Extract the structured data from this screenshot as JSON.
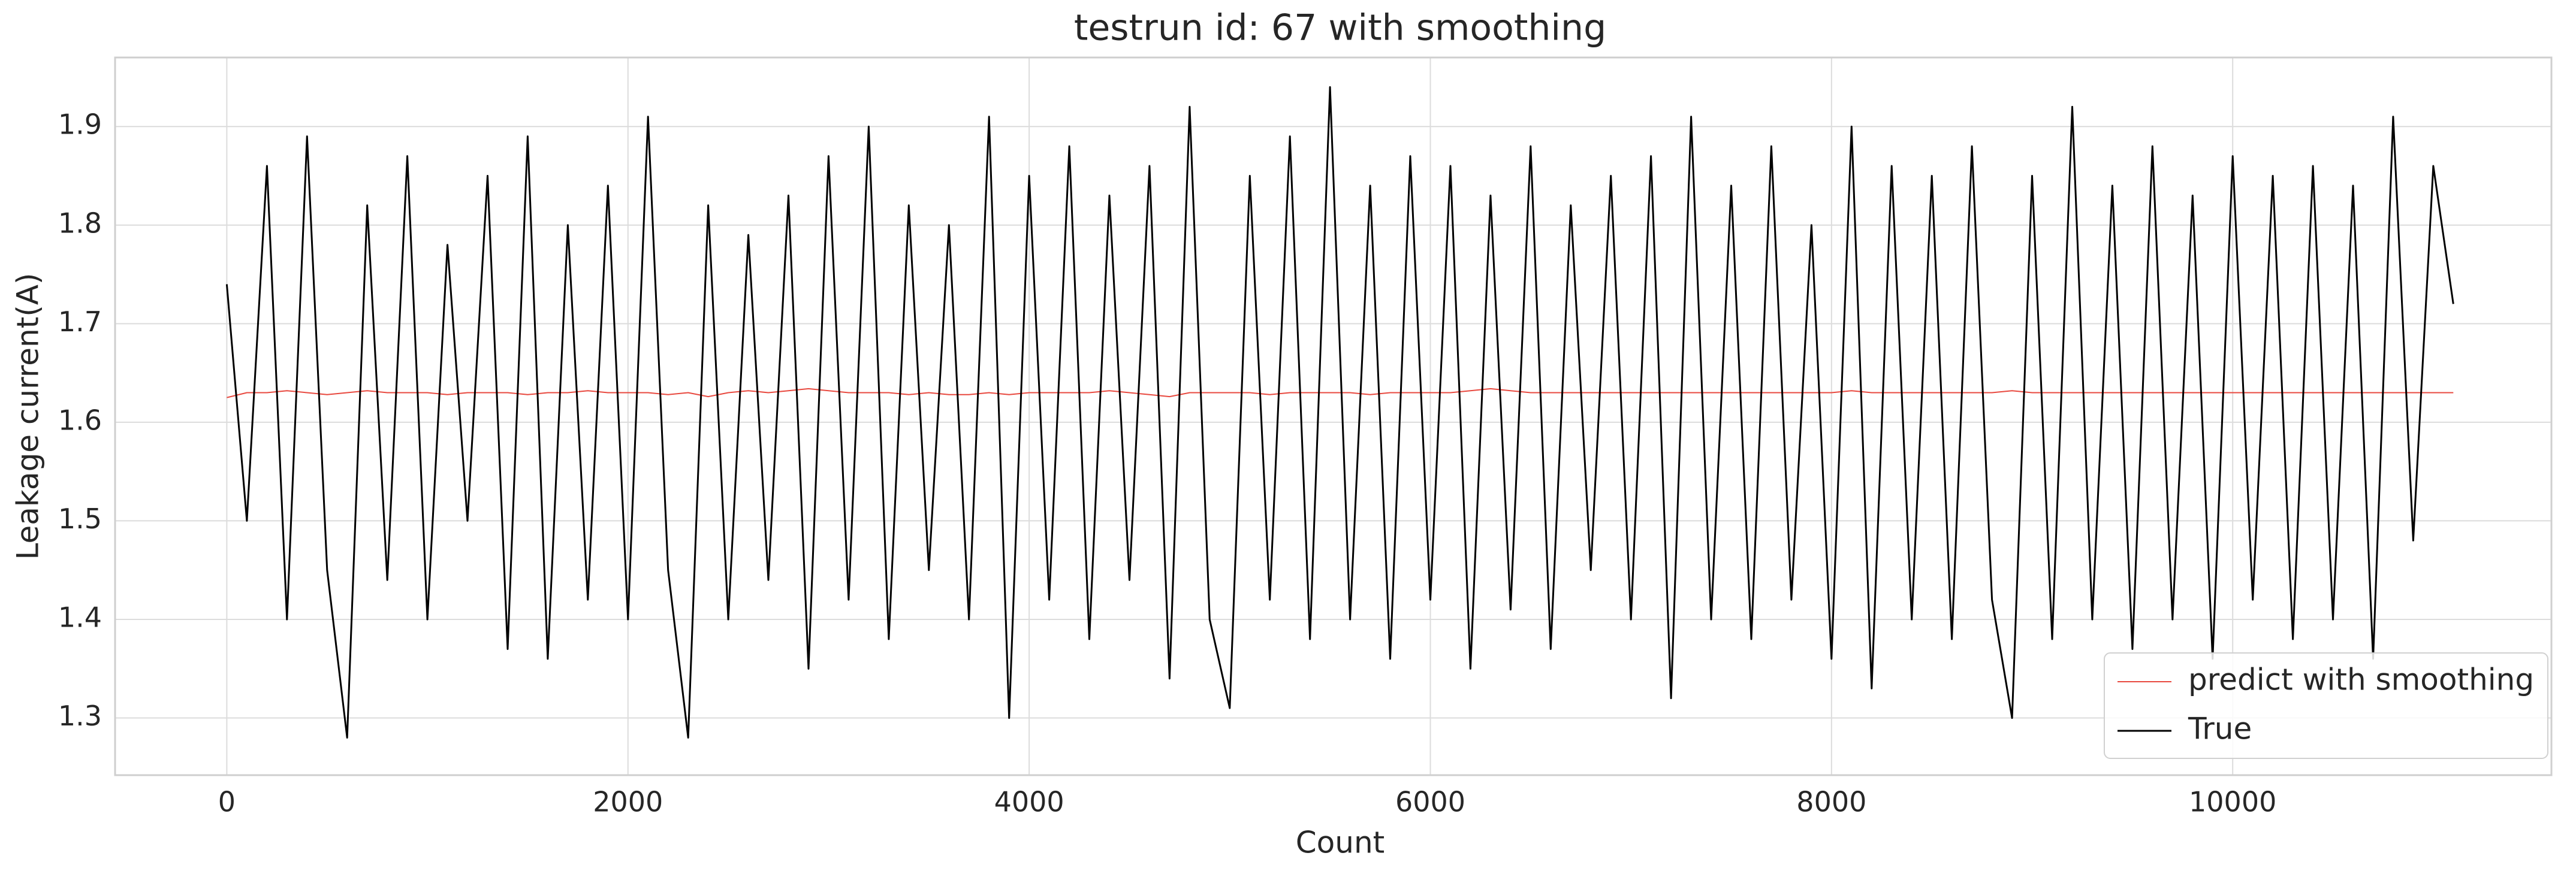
{
  "chart_data": {
    "type": "line",
    "title": "testrun id: 67 with smoothing",
    "x_label": "Count",
    "y_label": "Leakage current(A)",
    "x": [
      0,
      100,
      200,
      300,
      400,
      500,
      600,
      700,
      800,
      900,
      1000,
      1100,
      1200,
      1300,
      1400,
      1500,
      1600,
      1700,
      1800,
      1900,
      2000,
      2100,
      2200,
      2300,
      2400,
      2500,
      2600,
      2700,
      2800,
      2900,
      3000,
      3100,
      3200,
      3300,
      3400,
      3500,
      3600,
      3700,
      3800,
      3900,
      4000,
      4100,
      4200,
      4300,
      4400,
      4500,
      4600,
      4700,
      4800,
      4900,
      5000,
      5100,
      5200,
      5300,
      5400,
      5500,
      5600,
      5700,
      5800,
      5900,
      6000,
      6100,
      6200,
      6300,
      6400,
      6500,
      6600,
      6700,
      6800,
      6900,
      7000,
      7100,
      7200,
      7300,
      7400,
      7500,
      7600,
      7700,
      7800,
      7900,
      8000,
      8100,
      8200,
      8300,
      8400,
      8500,
      8600,
      8700,
      8800,
      8900,
      9000,
      9100,
      9200,
      9300,
      9400,
      9500,
      9600,
      9700,
      9800,
      9900,
      10000,
      10100,
      10200,
      10300,
      10400,
      10500,
      10600,
      10700,
      10800,
      10900,
      11000,
      11100
    ],
    "series": [
      {
        "name": "predict with smoothing",
        "color": "#e8493f",
        "width": 2,
        "values": [
          1.625,
          1.63,
          1.63,
          1.632,
          1.63,
          1.628,
          1.63,
          1.632,
          1.63,
          1.63,
          1.63,
          1.628,
          1.63,
          1.63,
          1.63,
          1.628,
          1.63,
          1.63,
          1.632,
          1.63,
          1.63,
          1.63,
          1.628,
          1.63,
          1.626,
          1.63,
          1.632,
          1.63,
          1.632,
          1.634,
          1.632,
          1.63,
          1.63,
          1.63,
          1.628,
          1.63,
          1.628,
          1.628,
          1.63,
          1.628,
          1.63,
          1.63,
          1.63,
          1.63,
          1.632,
          1.63,
          1.628,
          1.626,
          1.63,
          1.63,
          1.63,
          1.63,
          1.628,
          1.63,
          1.63,
          1.63,
          1.63,
          1.628,
          1.63,
          1.63,
          1.63,
          1.63,
          1.632,
          1.634,
          1.632,
          1.63,
          1.63,
          1.63,
          1.63,
          1.63,
          1.63,
          1.63,
          1.63,
          1.63,
          1.63,
          1.63,
          1.63,
          1.63,
          1.63,
          1.63,
          1.63,
          1.632,
          1.63,
          1.63,
          1.63,
          1.63,
          1.63,
          1.63,
          1.63,
          1.632,
          1.63,
          1.63,
          1.63,
          1.63,
          1.63,
          1.63,
          1.63,
          1.63,
          1.63,
          1.63,
          1.63,
          1.63,
          1.63,
          1.63,
          1.63,
          1.63,
          1.63,
          1.63,
          1.63,
          1.63,
          1.63,
          1.63
        ]
      },
      {
        "name": "True",
        "color": "#000000",
        "width": 3,
        "values": [
          1.74,
          1.5,
          1.86,
          1.4,
          1.89,
          1.45,
          1.28,
          1.82,
          1.44,
          1.87,
          1.4,
          1.78,
          1.5,
          1.85,
          1.37,
          1.89,
          1.36,
          1.8,
          1.42,
          1.84,
          1.4,
          1.91,
          1.45,
          1.28,
          1.82,
          1.4,
          1.79,
          1.44,
          1.83,
          1.35,
          1.87,
          1.42,
          1.9,
          1.38,
          1.82,
          1.45,
          1.8,
          1.4,
          1.91,
          1.3,
          1.85,
          1.42,
          1.88,
          1.38,
          1.83,
          1.44,
          1.86,
          1.34,
          1.92,
          1.4,
          1.31,
          1.85,
          1.42,
          1.89,
          1.38,
          1.94,
          1.4,
          1.84,
          1.36,
          1.87,
          1.42,
          1.86,
          1.35,
          1.83,
          1.41,
          1.88,
          1.37,
          1.82,
          1.45,
          1.85,
          1.4,
          1.87,
          1.32,
          1.91,
          1.4,
          1.84,
          1.38,
          1.88,
          1.42,
          1.8,
          1.36,
          1.9,
          1.33,
          1.86,
          1.4,
          1.85,
          1.38,
          1.88,
          1.42,
          1.3,
          1.85,
          1.38,
          1.92,
          1.4,
          1.84,
          1.37,
          1.88,
          1.4,
          1.83,
          1.36,
          1.87,
          1.42,
          1.85,
          1.38,
          1.86,
          1.4,
          1.84,
          1.36,
          1.91,
          1.48,
          1.86,
          1.72
        ]
      }
    ],
    "xlim": [
      -557,
      11589
    ],
    "ylim": [
      1.242,
      1.97
    ],
    "xticks": [
      0,
      2000,
      4000,
      6000,
      8000,
      10000
    ],
    "yticks": [
      1.3,
      1.4,
      1.5,
      1.6,
      1.7,
      1.8,
      1.9
    ],
    "grid": true,
    "legend": "lower right"
  }
}
